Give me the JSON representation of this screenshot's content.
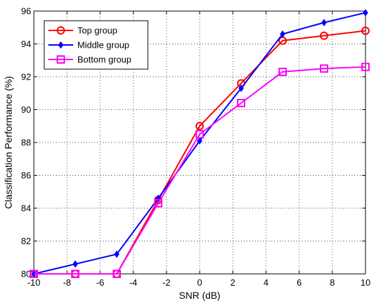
{
  "chart_data": {
    "type": "line",
    "xlabel": "SNR (dB)",
    "ylabel": "Classification Performance (%)",
    "xlim": [
      -10,
      10
    ],
    "ylim": [
      80,
      96
    ],
    "xticks": [
      -10,
      -8,
      -6,
      -4,
      -2,
      0,
      2,
      4,
      6,
      8,
      10
    ],
    "yticks": [
      80,
      82,
      84,
      86,
      88,
      90,
      92,
      94,
      96
    ],
    "grid": true,
    "legend_position": "top-left",
    "x": [
      -10,
      -7.5,
      -5,
      -2.5,
      0,
      2.5,
      5,
      7.5,
      10
    ],
    "series": [
      {
        "name": "Top group",
        "color": "#ff0000",
        "marker": "circle",
        "values": [
          80.0,
          80.0,
          80.0,
          84.5,
          89.0,
          91.6,
          94.2,
          94.5,
          94.8
        ]
      },
      {
        "name": "Middle group",
        "color": "#0000ff",
        "marker": "diamond",
        "values": [
          80.0,
          80.6,
          81.2,
          84.6,
          88.1,
          91.3,
          94.6,
          95.3,
          95.9
        ]
      },
      {
        "name": "Bottom group",
        "color": "#ff00ff",
        "marker": "square",
        "values": [
          80.0,
          80.0,
          80.0,
          84.3,
          88.5,
          90.4,
          92.3,
          92.5,
          92.6
        ]
      }
    ]
  }
}
